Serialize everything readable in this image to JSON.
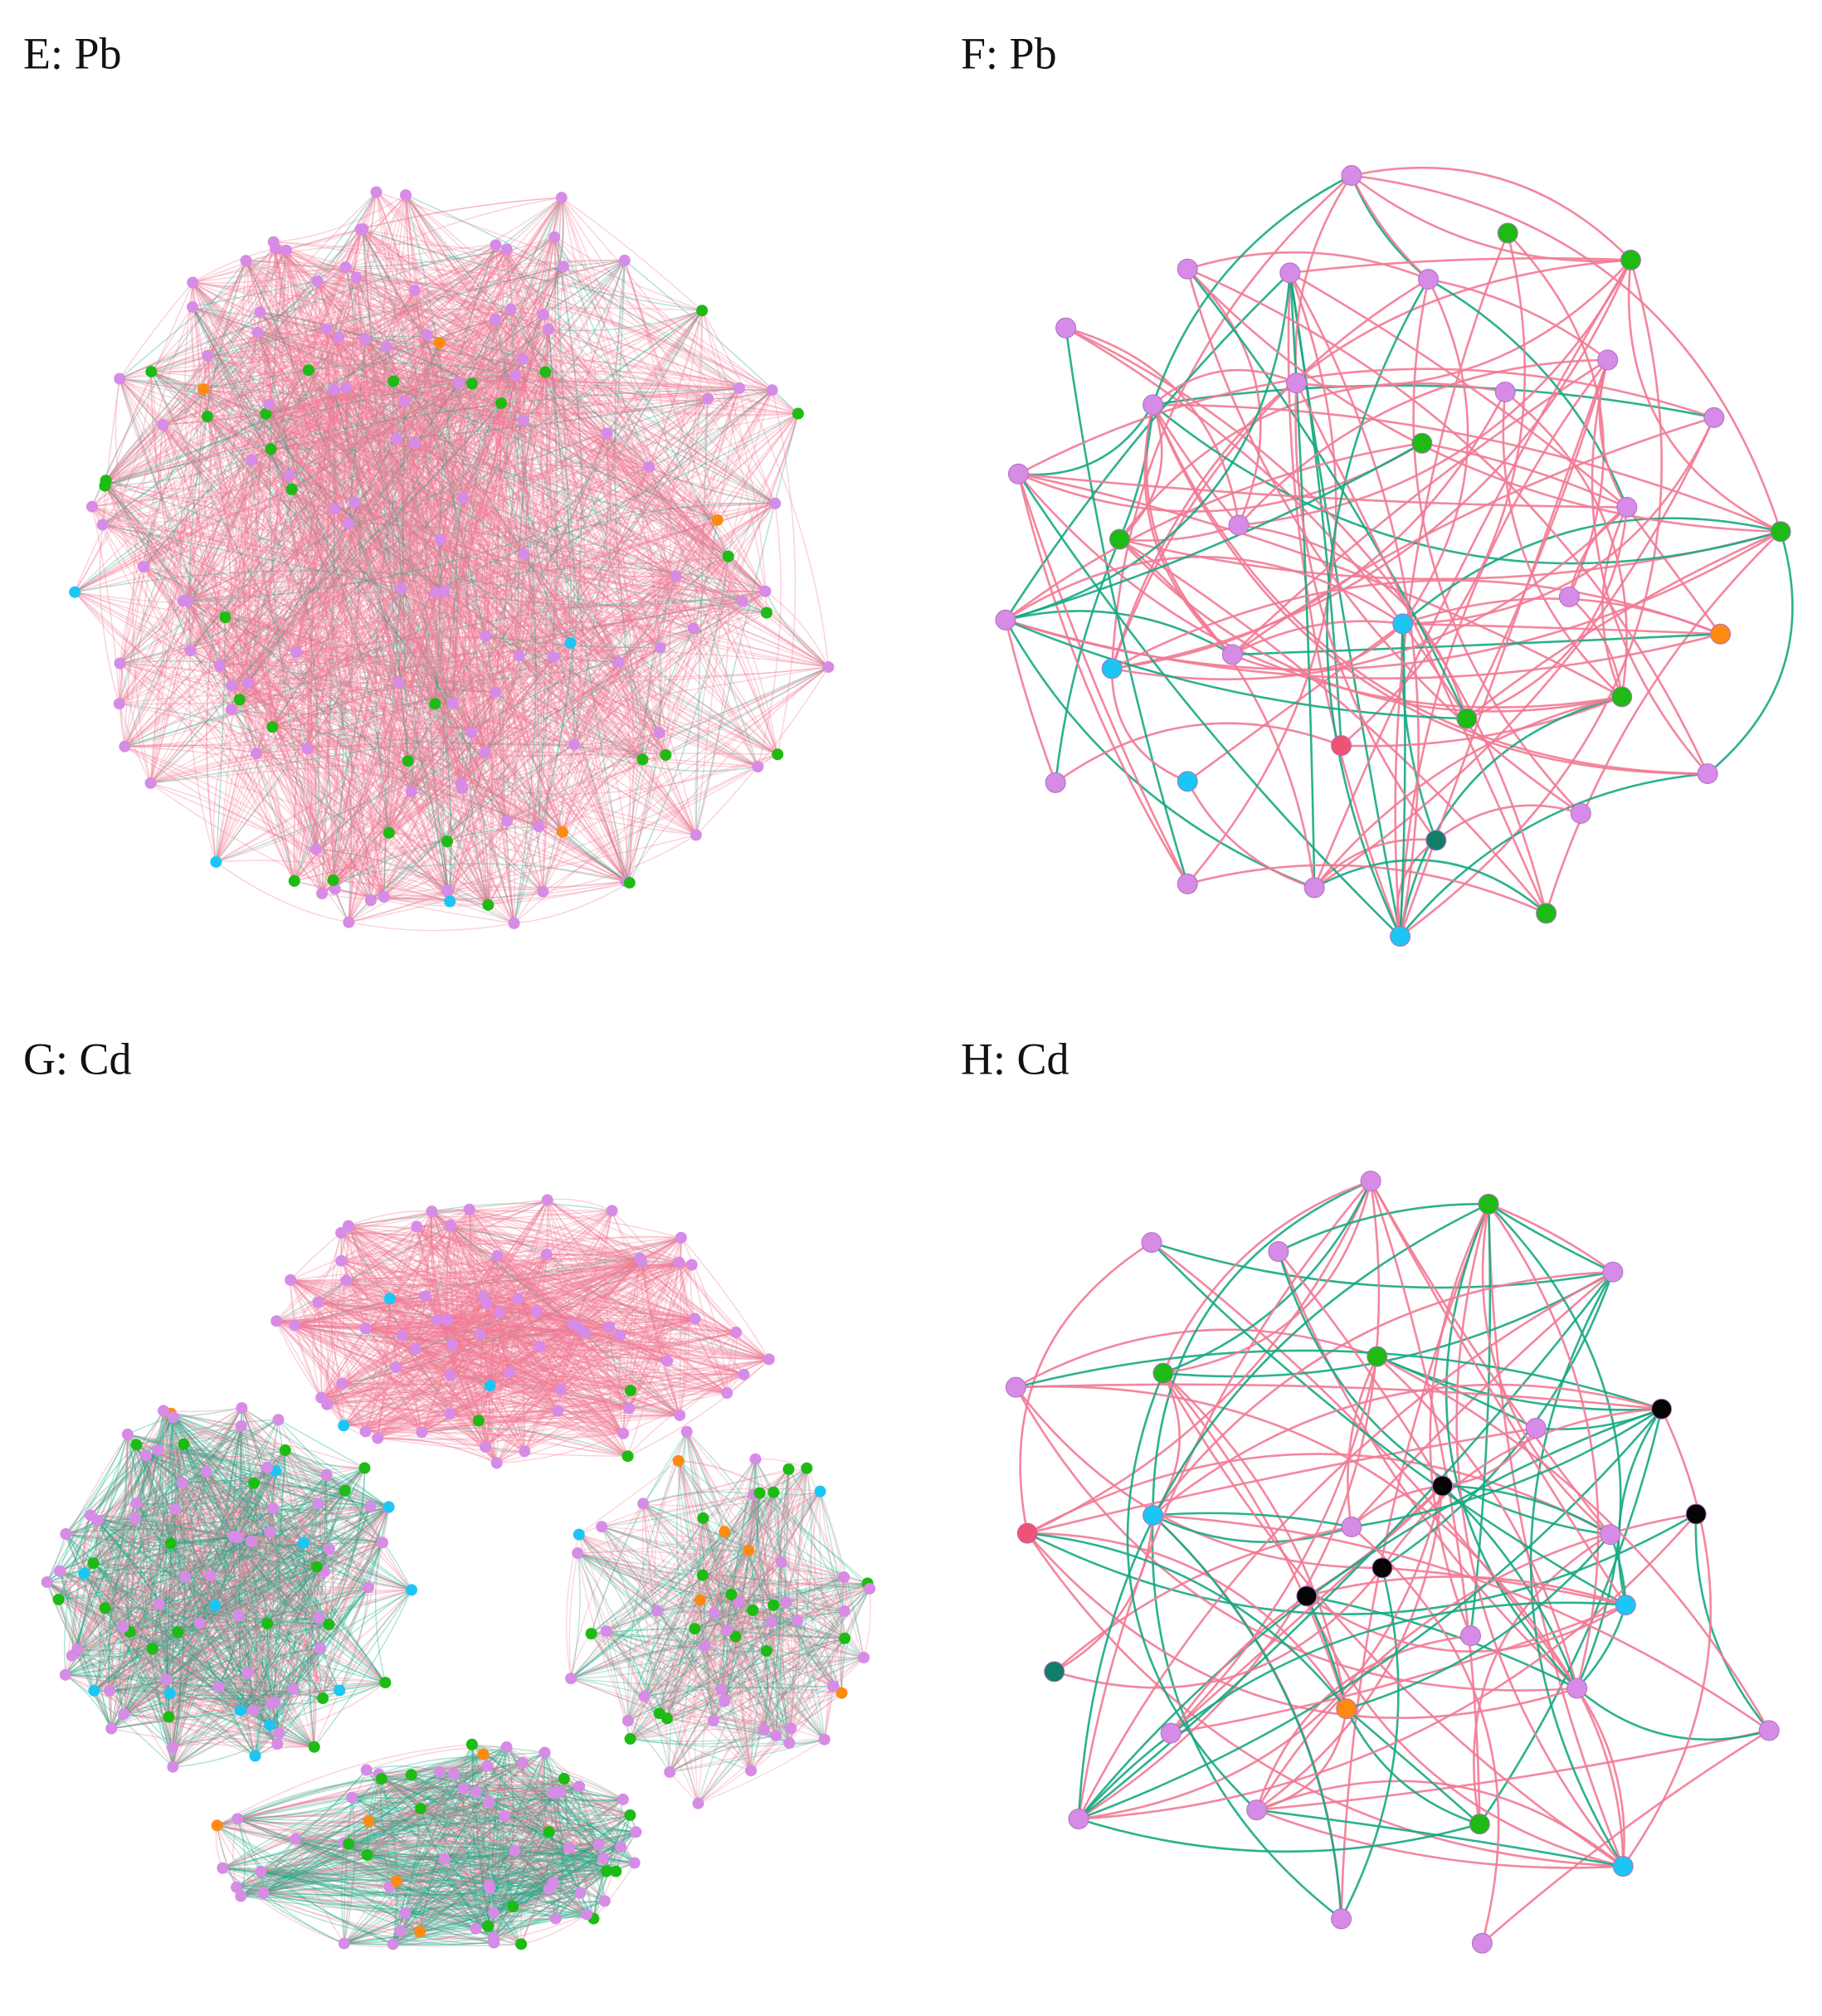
{
  "panels": [
    {
      "label": "E: Pb"
    },
    {
      "label": "F: Pb"
    },
    {
      "label": "G: Cd"
    },
    {
      "label": "H: Cd"
    }
  ]
}
